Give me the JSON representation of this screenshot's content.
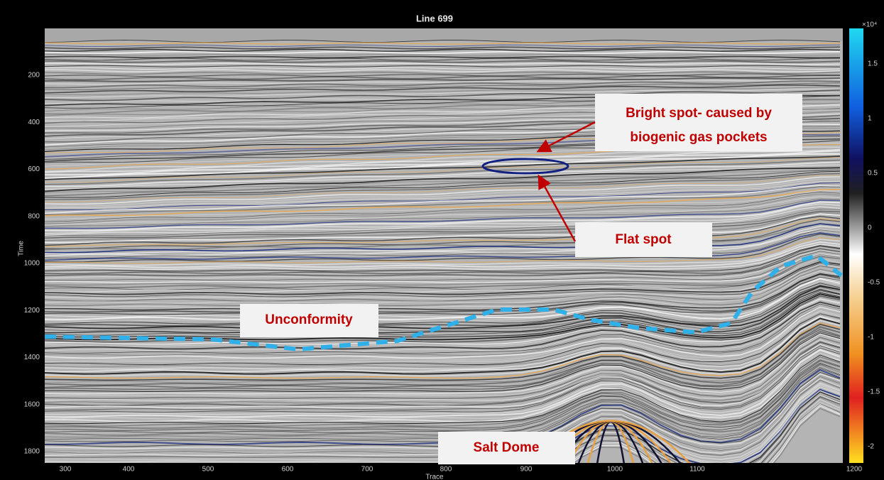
{
  "title": "Line 699",
  "x_axis": {
    "label": "Trace",
    "ticks": [
      300,
      400,
      500,
      600,
      700,
      800,
      900,
      1000,
      1100,
      1200
    ]
  },
  "y_axis": {
    "label": "Time",
    "ticks": [
      200,
      400,
      600,
      800,
      1000,
      1200,
      1400,
      1600,
      1800
    ]
  },
  "colorbar": {
    "exponent_label": "×10⁴",
    "ticks": [
      1.5,
      1,
      0.5,
      0,
      -0.5,
      -1,
      -1.5,
      -2
    ]
  },
  "annotations": [
    {
      "lines": [
        "Bright spot- caused by",
        "biogenic gas pockets"
      ]
    },
    {
      "lines": [
        "Flat spot"
      ]
    },
    {
      "lines": [
        "Unconformity"
      ]
    },
    {
      "lines": [
        "Salt Dome"
      ]
    }
  ]
}
